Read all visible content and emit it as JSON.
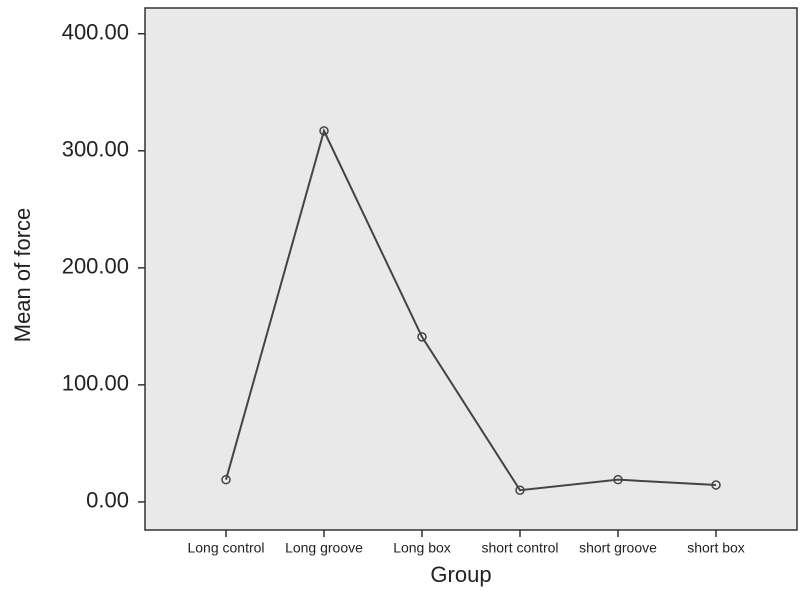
{
  "chart_data": {
    "type": "line",
    "x_label": "Group",
    "y_label": "Mean of force",
    "categories": [
      "Long control",
      "Long groove",
      "Long box",
      "short control",
      "short groove",
      "short box"
    ],
    "values": [
      19,
      317,
      141,
      10,
      19,
      14.5
    ],
    "color": "#444444",
    "ylim": [
      -24,
      422
    ],
    "yticks": [
      {
        "value": 0,
        "label": "0.00"
      },
      {
        "value": 100,
        "label": "100.00"
      },
      {
        "value": 200,
        "label": "200.00"
      },
      {
        "value": 300,
        "label": "300.00"
      },
      {
        "value": 400,
        "label": "400.00"
      }
    ]
  }
}
